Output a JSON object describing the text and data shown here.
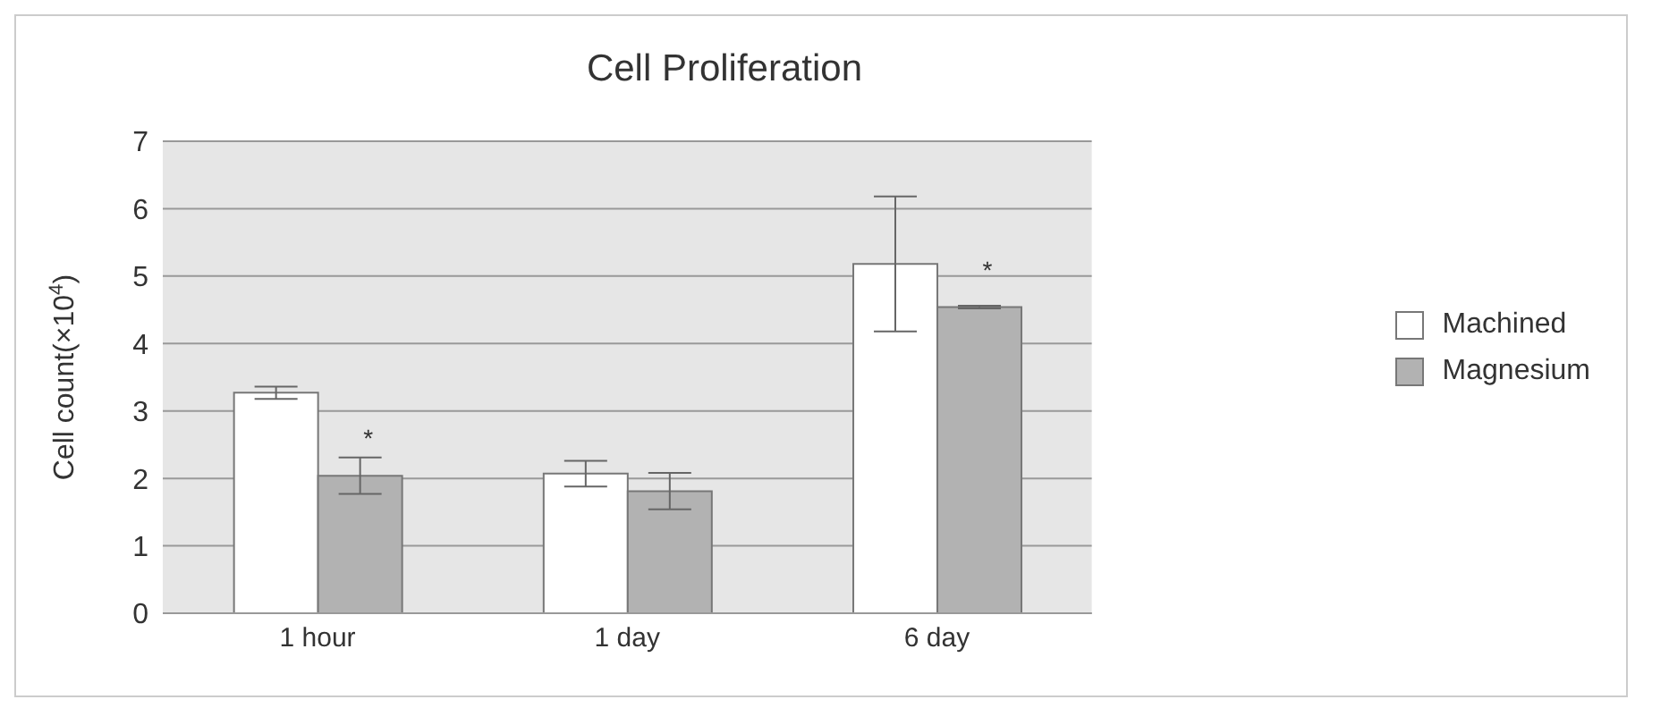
{
  "chart_data": {
    "type": "bar",
    "title": "Cell Proliferation",
    "ylabel": "Cell count(×10$^{4}$)",
    "categories": [
      "1 hour",
      "1 day",
      "6 day"
    ],
    "series": [
      {
        "name": "Machined",
        "color": "#ffffff",
        "values": [
          3.27,
          2.07,
          5.18
        ],
        "errors": [
          0.09,
          0.19,
          1.0
        ]
      },
      {
        "name": "Magnesium",
        "color": "#b2b2b2",
        "values": [
          2.04,
          1.81,
          4.54
        ],
        "errors": [
          0.27,
          0.27,
          0.02
        ]
      }
    ],
    "ylim": [
      0,
      7
    ],
    "yticks": [
      0,
      1,
      2,
      3,
      4,
      5,
      6,
      7
    ],
    "grid": "y",
    "legend": "right",
    "annotations": [
      {
        "text": "*",
        "x": "1 hour",
        "y": 2.57
      },
      {
        "text": "*",
        "x": "6 day",
        "y": 5.07
      }
    ]
  }
}
